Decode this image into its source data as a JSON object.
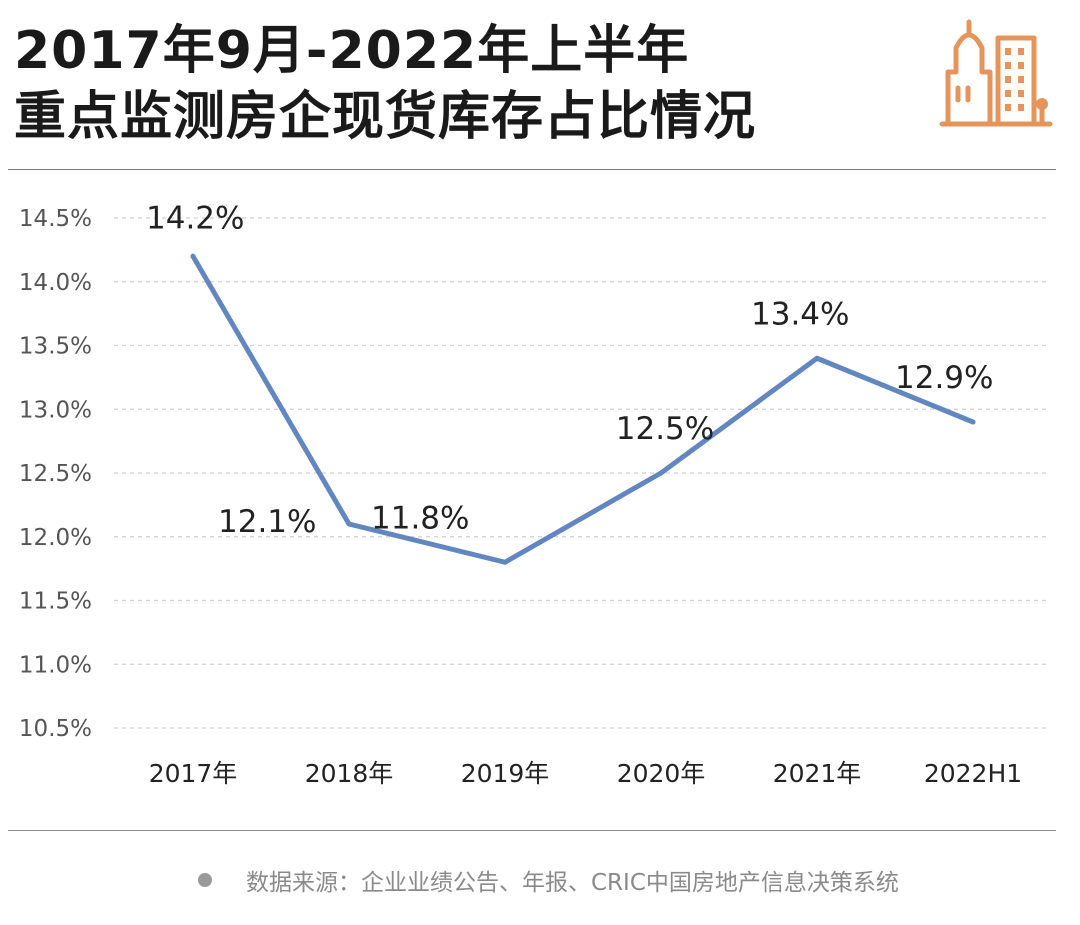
{
  "title": {
    "line1": "2017年9月-2022年上半年",
    "line2": "重点监测房企现货库存占比情况"
  },
  "source": {
    "text": "数据来源：企业业绩公告、年报、CRIC中国房地产信息决策系统"
  },
  "colors": {
    "line": "#6287c0",
    "logo": "#e5955c",
    "grid": "#cfcfcf",
    "text": "#222222",
    "muted": "#8a8a8a"
  },
  "icons": {
    "logo": "city-buildings-icon",
    "source_bullet": "bullet-dot-icon"
  },
  "chart_data": {
    "type": "line",
    "categories": [
      "2017年",
      "2018年",
      "2019年",
      "2020年",
      "2021年",
      "2022H1"
    ],
    "values": [
      14.2,
      12.1,
      11.8,
      12.5,
      13.4,
      12.9
    ],
    "data_labels": [
      "14.2%",
      "12.1%",
      "11.8%",
      "12.5%",
      "13.4%",
      "12.9%"
    ],
    "yticks": [
      14.5,
      14.0,
      13.5,
      13.0,
      12.5,
      12.0,
      11.5,
      11.0,
      10.5
    ],
    "ytick_labels": [
      "14.5%",
      "14.0%",
      "13.5%",
      "13.0%",
      "12.5%",
      "12.0%",
      "11.5%",
      "11.0%",
      "10.5%"
    ],
    "ylim": [
      10.5,
      14.5
    ],
    "grid": true,
    "grid_style": "dashed-horizontal",
    "legend": "none"
  }
}
